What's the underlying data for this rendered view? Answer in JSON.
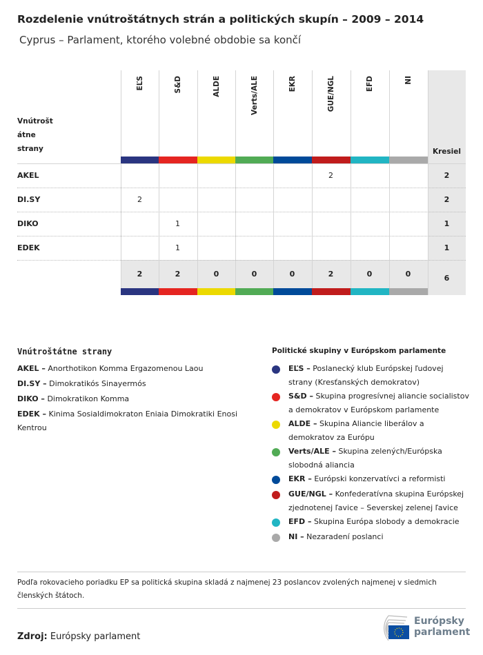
{
  "title": "Rozdelenie vnútroštátnych strán a politických skupín – 2009 – 2014",
  "subtitle": "Cyprus – Parlament, ktorého volebné obdobie sa končí",
  "table": {
    "row_header": [
      "Vnútrošt",
      "átne",
      "strany"
    ],
    "seats_header": "Kresiel",
    "groups": [
      {
        "name": "EĽS",
        "color": "#2a3580"
      },
      {
        "name": "S&D",
        "color": "#e52521"
      },
      {
        "name": "ALDE",
        "color": "#ecd900"
      },
      {
        "name": "Verts/ALE",
        "color": "#51ab55"
      },
      {
        "name": "EKR",
        "color": "#004a99"
      },
      {
        "name": "GUE/NGL",
        "color": "#c01c1c"
      },
      {
        "name": "EFD",
        "color": "#21b5c3"
      },
      {
        "name": "NI",
        "color": "#a9a9a9"
      }
    ],
    "rows": [
      {
        "party": "AKEL",
        "values": [
          "",
          "",
          "",
          "",
          "",
          "2",
          "",
          ""
        ],
        "total": "2"
      },
      {
        "party": "DI.SY",
        "values": [
          "2",
          "",
          "",
          "",
          "",
          "",
          "",
          ""
        ],
        "total": "2"
      },
      {
        "party": "DIKO",
        "values": [
          "",
          "1",
          "",
          "",
          "",
          "",
          "",
          ""
        ],
        "total": "1"
      },
      {
        "party": "EDEK",
        "values": [
          "",
          "1",
          "",
          "",
          "",
          "",
          "",
          ""
        ],
        "total": "1"
      }
    ],
    "totals": [
      "2",
      "2",
      "0",
      "0",
      "0",
      "2",
      "0",
      "0"
    ],
    "grand_total": "6"
  },
  "national_legend": {
    "heading": "Vnútroštátne strany",
    "items": [
      {
        "abbr": "AKEL –",
        "name": "Anorthotikon Komma Ergazomenou Laou"
      },
      {
        "abbr": "DI.SY –",
        "name": "Dimokratikós Sinayermós"
      },
      {
        "abbr": "DIKO –",
        "name": "Dimokratikon Komma"
      },
      {
        "abbr": "EDEK –",
        "name": "Kinima Sosialdimokraton Eniaia Dimokratiki Enosi Kentrou"
      }
    ]
  },
  "group_legend": {
    "heading": "Politické skupiny v Európskom parlamente",
    "items": [
      {
        "abbr": "EĽS –",
        "name": "Poslanecký klub Európskej ľudovej strany (Kresťanských demokratov)"
      },
      {
        "abbr": "S&D –",
        "name": "Skupina progresívnej aliancie socialistov a demokratov v Európskom parlamente"
      },
      {
        "abbr": "ALDE –",
        "name": "Skupina Aliancie liberálov a demokratov za Európu"
      },
      {
        "abbr": "Verts/ALE –",
        "name": "Skupina zelených/Európska slobodná aliancia"
      },
      {
        "abbr": "EKR –",
        "name": "Európski konzervatívci a reformisti"
      },
      {
        "abbr": "GUE/NGL –",
        "name": "Konfederatívna skupina Európskej zjednotenej ľavice – Severskej zelenej ľavice"
      },
      {
        "abbr": "EFD –",
        "name": "Skupina Európa slobody a demokracie"
      },
      {
        "abbr": "NI –",
        "name": "Nezaradení poslanci"
      }
    ]
  },
  "note": "Podľa rokovacieho poriadku EP sa politická skupina skladá z najmenej 23 poslancov zvolených najmenej v siedmich členských štátoch.",
  "source": {
    "label": "Zdroj:",
    "value": "Európsky parlament"
  },
  "logo": {
    "line1": "Európsky",
    "line2": "parlament"
  }
}
